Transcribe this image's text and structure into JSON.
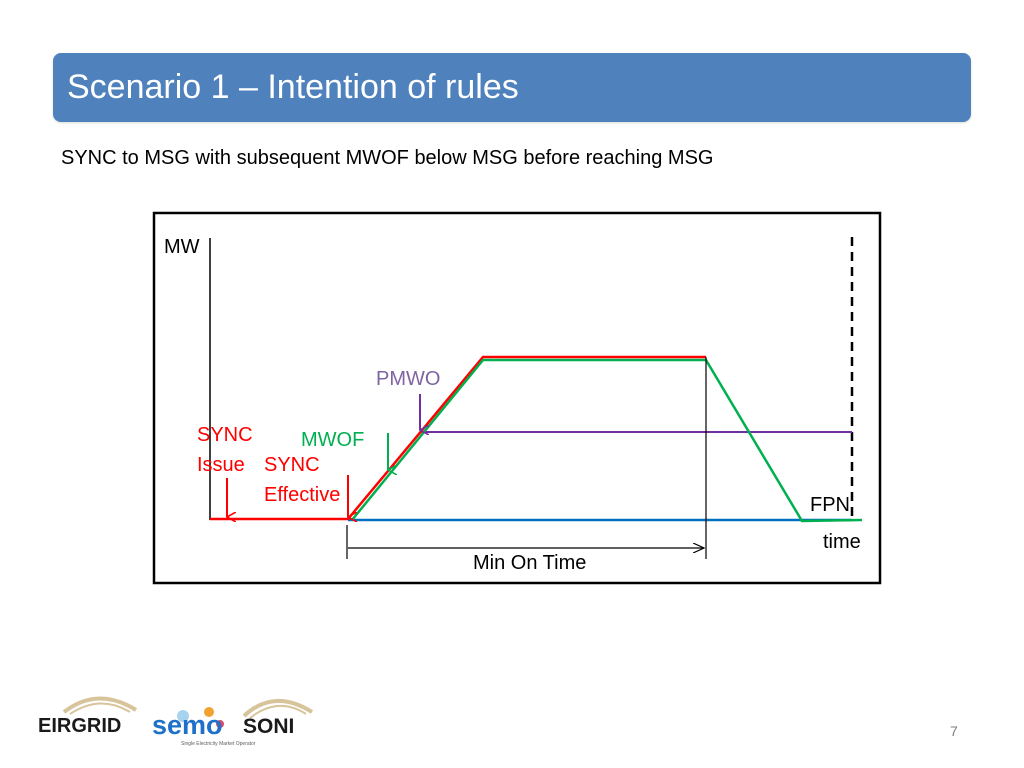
{
  "slide": {
    "title": "Scenario 1 – Intention of rules",
    "subtitle": "SYNC to MSG with subsequent MWOF below MSG before reaching MSG",
    "page_number": "7"
  },
  "diagram": {
    "labels": {
      "y_axis": "MW",
      "x_axis": "time",
      "pmwo": "PMWO",
      "mwof": "MWOF",
      "sync_issue_line1": "SYNC",
      "sync_issue_line2": "Issue",
      "sync_effective_line1": "SYNC",
      "sync_effective_line2": "Effective",
      "fpn": "FPN",
      "min_on_time": "Min On Time"
    },
    "colors": {
      "red": "#ff0000",
      "green": "#00b050",
      "purple": "#7030a0",
      "blue": "#0070c0",
      "pmwo_label": "#8064a2",
      "frame": "#000000"
    }
  },
  "logos": {
    "eirgrid": "EIRGRID",
    "semo": "semo",
    "semo_tagline": "Single Electricity Market Operator",
    "soni": "SONI"
  }
}
